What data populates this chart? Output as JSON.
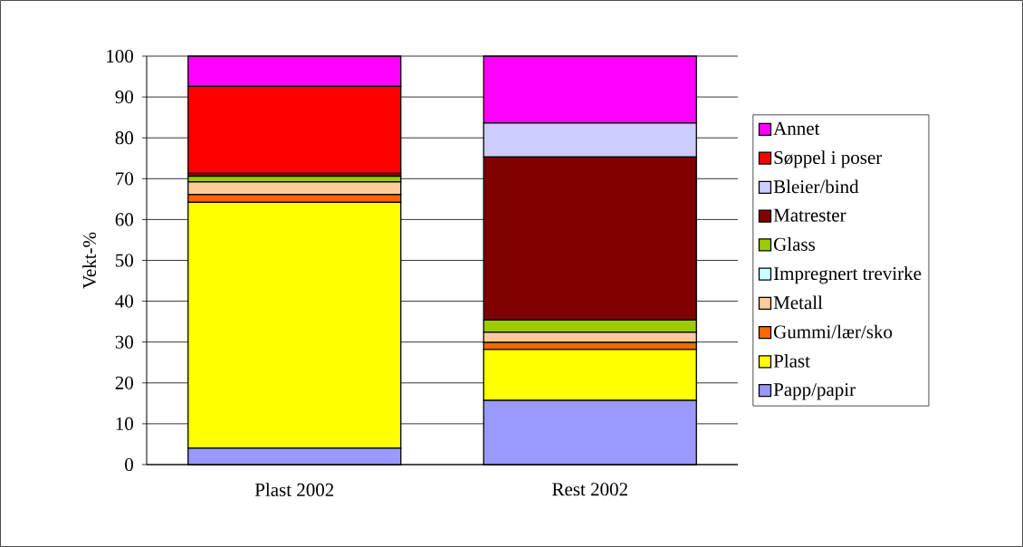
{
  "chart_data": {
    "type": "bar",
    "stacked": true,
    "ylabel": "Vekt-%",
    "categories": [
      "Plast 2002",
      "Rest 2002"
    ],
    "ylim": [
      0,
      100
    ],
    "yticks": [
      0,
      10,
      20,
      30,
      40,
      50,
      60,
      70,
      80,
      90,
      100
    ],
    "grid": "y",
    "legend": "right",
    "series": [
      {
        "name": "Papp/papir",
        "color": "#9999ff",
        "values": [
          4.0,
          15.7
        ]
      },
      {
        "name": "Plast",
        "color": "#ffff00",
        "values": [
          60.2,
          12.5
        ]
      },
      {
        "name": "Gummi/lær/sko",
        "color": "#ff6600",
        "values": [
          1.9,
          1.7
        ]
      },
      {
        "name": "Metall",
        "color": "#ffcc99",
        "values": [
          3.1,
          2.5
        ]
      },
      {
        "name": "Impregnert trevirke",
        "color": "#ccffff",
        "values": [
          0,
          0
        ]
      },
      {
        "name": "Glass",
        "color": "#99cc00",
        "values": [
          1.4,
          3.0
        ]
      },
      {
        "name": "Matrester",
        "color": "#800000",
        "values": [
          0.7,
          39.9
        ]
      },
      {
        "name": "Bleier/bind",
        "color": "#ccccff",
        "values": [
          0,
          8.3
        ]
      },
      {
        "name": "Søppel i poser",
        "color": "#ff0000",
        "values": [
          21.3,
          0
        ]
      },
      {
        "name": "Annet",
        "color": "#ff00ff",
        "values": [
          7.4,
          16.4
        ]
      }
    ]
  }
}
